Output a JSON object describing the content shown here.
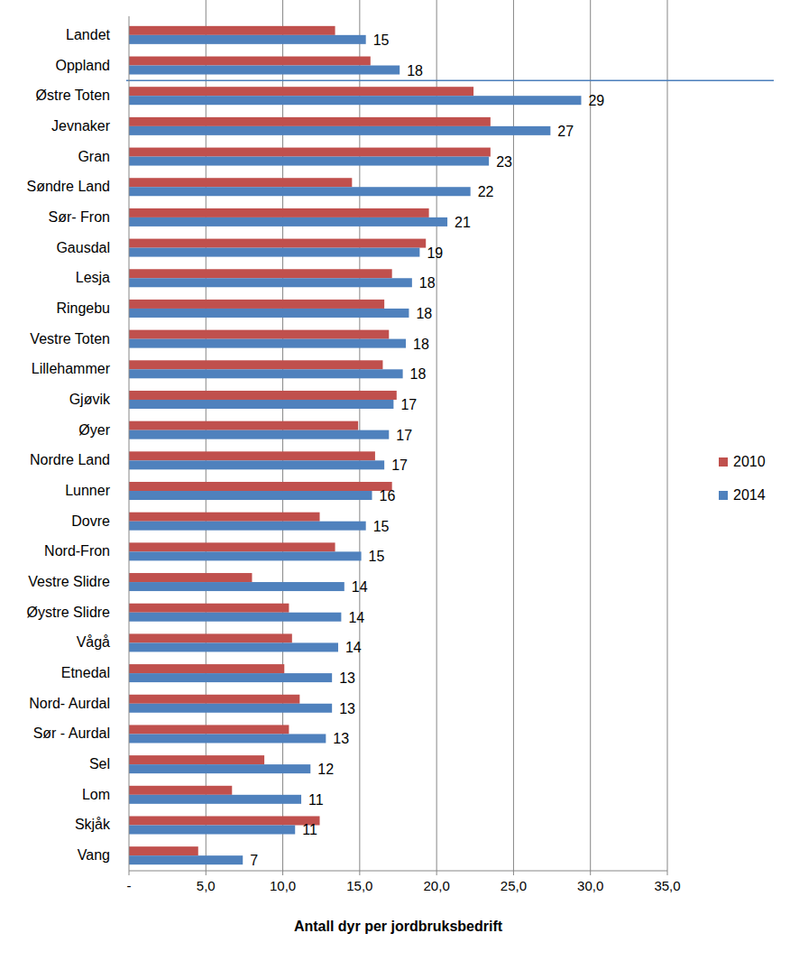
{
  "chart_data": {
    "type": "bar",
    "orientation": "horizontal",
    "xlabel": "Antall dyr per jordbruksbedrift",
    "categories": [
      "Landet",
      "Oppland",
      "Østre Toten",
      "Jevnaker",
      "Gran",
      "Søndre Land",
      "Sør- Fron",
      "Gausdal",
      "Lesja",
      "Ringebu",
      "Vestre Toten",
      "Lillehammer",
      "Gjøvik",
      "Øyer",
      "Nordre Land",
      "Lunner",
      "Dovre",
      "Nord-Fron",
      "Vestre Slidre",
      "Øystre Slidre",
      "Vågå",
      "Etnedal",
      "Nord- Aurdal",
      "Sør - Aurdal",
      "Sel",
      "Lom",
      "Skjåk",
      "Vang"
    ],
    "series": [
      {
        "name": "2010",
        "color": "#c0504d",
        "values": [
          13.4,
          15.7,
          22.4,
          23.5,
          23.5,
          14.5,
          19.5,
          19.3,
          17.1,
          16.6,
          16.9,
          16.5,
          17.4,
          14.9,
          16.0,
          17.1,
          12.4,
          13.4,
          8.0,
          10.4,
          10.6,
          10.1,
          11.1,
          10.4,
          8.8,
          6.7,
          12.4,
          4.5
        ]
      },
      {
        "name": "2014",
        "color": "#4f81bd",
        "values": [
          15.4,
          17.6,
          29.4,
          27.4,
          23.4,
          22.2,
          20.7,
          18.9,
          18.4,
          18.2,
          18.0,
          17.8,
          17.2,
          16.9,
          16.6,
          15.8,
          15.4,
          15.1,
          14.0,
          13.8,
          13.6,
          13.2,
          13.2,
          12.8,
          11.8,
          11.2,
          10.8,
          7.4
        ],
        "value_labels": [
          "15",
          "18",
          "29",
          "27",
          "23",
          "22",
          "21",
          "19",
          "18",
          "18",
          "18",
          "18",
          "17",
          "17",
          "17",
          "16",
          "15",
          "15",
          "14",
          "14",
          "14",
          "13",
          "13",
          "13",
          "12",
          "11",
          "11",
          "7"
        ]
      }
    ],
    "xlim": [
      0,
      35
    ],
    "xticks": [
      {
        "value": 0,
        "label": "-"
      },
      {
        "value": 5,
        "label": "5,0"
      },
      {
        "value": 10,
        "label": "10,0"
      },
      {
        "value": 15,
        "label": "15,0"
      },
      {
        "value": 20,
        "label": "20,0"
      },
      {
        "value": 25,
        "label": "25,0"
      },
      {
        "value": 30,
        "label": "30,0"
      },
      {
        "value": 35,
        "label": "35,0"
      }
    ],
    "grid": true,
    "legend": "right",
    "data_labels": true
  }
}
